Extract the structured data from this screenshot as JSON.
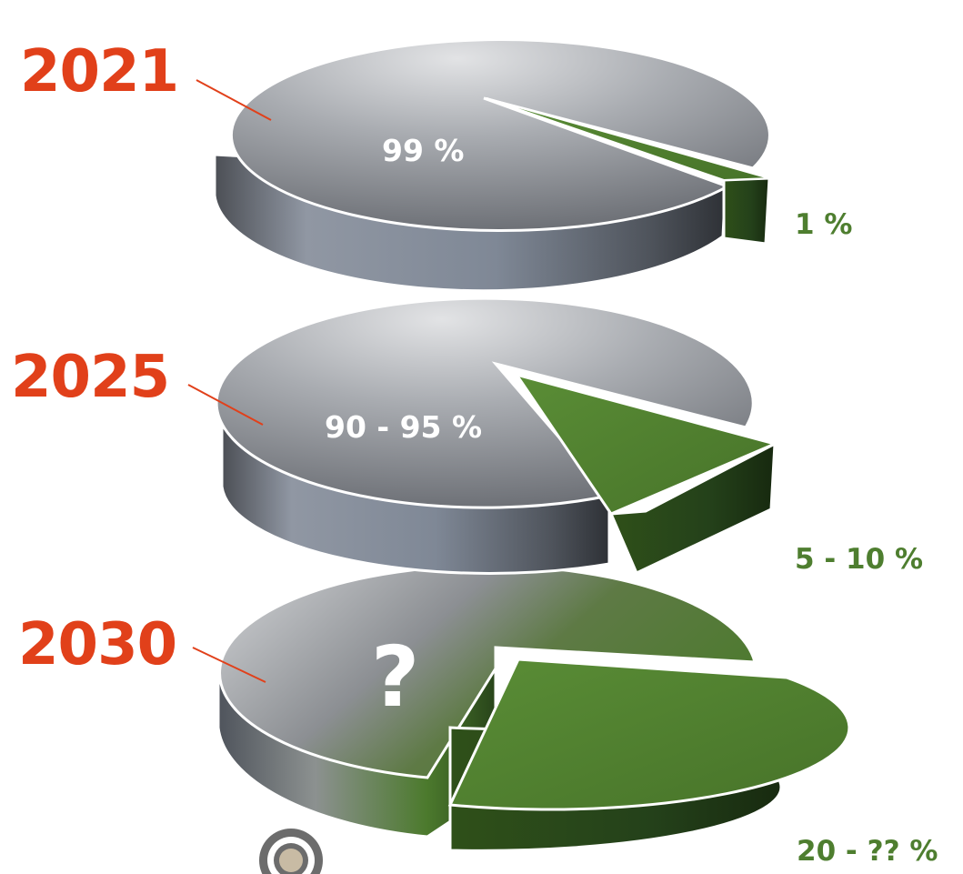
{
  "colors": {
    "accent_year": "#E1401A",
    "green": "#4E7E2F",
    "green_dark": "#233D12",
    "gray_light": "#D9DBDD",
    "gray_dark": "#6A6D73",
    "label_main": "#FFFFFF",
    "label_side": "#4E7E2F"
  },
  "chart_data": [
    {
      "type": "pie",
      "year": "2021",
      "segments": [
        {
          "value": 99,
          "label": "99 %",
          "color": "gray"
        },
        {
          "value": 1,
          "label": "1 %",
          "color": "green",
          "exploded": true
        }
      ]
    },
    {
      "type": "pie",
      "year": "2025",
      "segments": [
        {
          "value": 92.5,
          "label": "90 - 95 %",
          "color": "gray"
        },
        {
          "value": 7.5,
          "label": "5 - 10 %",
          "color": "green",
          "exploded": true
        }
      ]
    },
    {
      "type": "pie",
      "year": "2030",
      "segments": [
        {
          "value": null,
          "label": "?",
          "color": "gray-to-green"
        },
        {
          "value": null,
          "label": "20 - ?? %",
          "color": "green",
          "exploded": true
        }
      ]
    }
  ],
  "icons": {
    "bottom": "target-icon"
  }
}
